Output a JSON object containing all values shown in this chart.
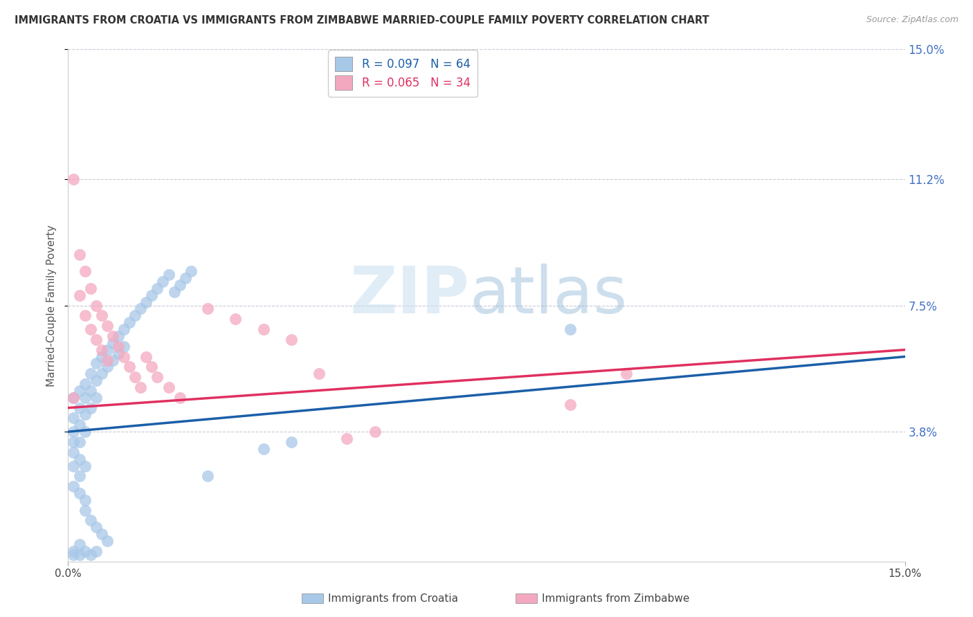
{
  "title": "IMMIGRANTS FROM CROATIA VS IMMIGRANTS FROM ZIMBABWE MARRIED-COUPLE FAMILY POVERTY CORRELATION CHART",
  "source": "Source: ZipAtlas.com",
  "ylabel": "Married-Couple Family Poverty",
  "xlim": [
    0.0,
    0.15
  ],
  "ylim": [
    0.0,
    0.15
  ],
  "ytick_labels": [
    "3.8%",
    "7.5%",
    "11.2%",
    "15.0%"
  ],
  "ytick_values": [
    0.038,
    0.075,
    0.112,
    0.15
  ],
  "watermark_zip": "ZIP",
  "watermark_atlas": "atlas",
  "legend_croatia": "R = 0.097   N = 64",
  "legend_zimbabwe": "R = 0.065   N = 34",
  "color_croatia": "#a8c8e8",
  "color_zimbabwe": "#f4a8c0",
  "color_line_croatia": "#1a5fa8",
  "color_line_zimbabwe": "#e03060",
  "background_color": "#ffffff",
  "grid_color": "#c8c8d8",
  "croatia_x": [
    0.001,
    0.001,
    0.001,
    0.001,
    0.002,
    0.002,
    0.002,
    0.002,
    0.003,
    0.003,
    0.003,
    0.003,
    0.004,
    0.004,
    0.004,
    0.005,
    0.005,
    0.005,
    0.006,
    0.006,
    0.007,
    0.007,
    0.008,
    0.008,
    0.009,
    0.009,
    0.01,
    0.01,
    0.011,
    0.012,
    0.013,
    0.014,
    0.015,
    0.016,
    0.017,
    0.018,
    0.019,
    0.02,
    0.021,
    0.022,
    0.001,
    0.001,
    0.002,
    0.002,
    0.003,
    0.003,
    0.004,
    0.005,
    0.006,
    0.007,
    0.001,
    0.002,
    0.003,
    0.002,
    0.001,
    0.001,
    0.002,
    0.003,
    0.004,
    0.005,
    0.09,
    0.035,
    0.025,
    0.04
  ],
  "croatia_y": [
    0.048,
    0.042,
    0.038,
    0.035,
    0.05,
    0.045,
    0.04,
    0.035,
    0.052,
    0.048,
    0.043,
    0.038,
    0.055,
    0.05,
    0.045,
    0.058,
    0.053,
    0.048,
    0.06,
    0.055,
    0.062,
    0.057,
    0.064,
    0.059,
    0.066,
    0.061,
    0.068,
    0.063,
    0.07,
    0.072,
    0.074,
    0.076,
    0.078,
    0.08,
    0.082,
    0.084,
    0.079,
    0.081,
    0.083,
    0.085,
    0.028,
    0.022,
    0.025,
    0.02,
    0.018,
    0.015,
    0.012,
    0.01,
    0.008,
    0.006,
    0.032,
    0.03,
    0.028,
    0.005,
    0.003,
    0.002,
    0.002,
    0.003,
    0.002,
    0.003,
    0.068,
    0.033,
    0.025,
    0.035
  ],
  "zimbabwe_x": [
    0.001,
    0.001,
    0.002,
    0.002,
    0.003,
    0.003,
    0.004,
    0.004,
    0.005,
    0.005,
    0.006,
    0.006,
    0.007,
    0.007,
    0.008,
    0.009,
    0.01,
    0.011,
    0.012,
    0.013,
    0.014,
    0.015,
    0.016,
    0.018,
    0.02,
    0.025,
    0.03,
    0.035,
    0.04,
    0.045,
    0.05,
    0.055,
    0.09,
    0.1
  ],
  "zimbabwe_y": [
    0.112,
    0.048,
    0.09,
    0.078,
    0.085,
    0.072,
    0.08,
    0.068,
    0.075,
    0.065,
    0.072,
    0.062,
    0.069,
    0.059,
    0.066,
    0.063,
    0.06,
    0.057,
    0.054,
    0.051,
    0.06,
    0.057,
    0.054,
    0.051,
    0.048,
    0.074,
    0.071,
    0.068,
    0.065,
    0.055,
    0.036,
    0.038,
    0.046,
    0.055
  ],
  "trendline_croatia_y0": 0.038,
  "trendline_croatia_y1": 0.06,
  "trendline_zimbabwe_y0": 0.045,
  "trendline_zimbabwe_y1": 0.062
}
